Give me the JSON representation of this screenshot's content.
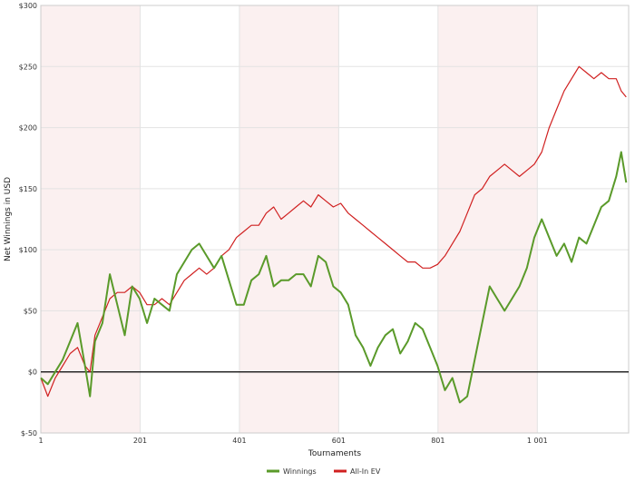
{
  "chart_data": {
    "type": "line",
    "title": "",
    "xlabel": "Tournaments",
    "ylabel": "Net Winnings in USD",
    "xlim": [
      1,
      1185
    ],
    "ylim": [
      -50,
      300
    ],
    "x_ticks": [
      {
        "value": 1,
        "label": "1"
      },
      {
        "value": 201,
        "label": "201"
      },
      {
        "value": 401,
        "label": "401"
      },
      {
        "value": 601,
        "label": "601"
      },
      {
        "value": 801,
        "label": "801"
      },
      {
        "value": 1001,
        "label": "1 001"
      }
    ],
    "y_ticks": [
      {
        "value": -50,
        "label": "$-50"
      },
      {
        "value": 0,
        "label": "$0"
      },
      {
        "value": 50,
        "label": "$50"
      },
      {
        "value": 100,
        "label": "$100"
      },
      {
        "value": 150,
        "label": "$150"
      },
      {
        "value": 200,
        "label": "$200"
      },
      {
        "value": 250,
        "label": "$250"
      },
      {
        "value": 300,
        "label": "$300"
      }
    ],
    "shaded_bands": [
      [
        1,
        201
      ],
      [
        401,
        601
      ],
      [
        801,
        1001
      ]
    ],
    "grid": true,
    "legend_position": "bottom-center",
    "series": [
      {
        "name": "Winnings",
        "color": "#5a9a2a",
        "x": [
          1,
          15,
          30,
          45,
          60,
          75,
          90,
          100,
          110,
          125,
          140,
          155,
          170,
          185,
          200,
          215,
          230,
          245,
          260,
          275,
          290,
          305,
          320,
          335,
          350,
          365,
          380,
          395,
          410,
          425,
          440,
          455,
          470,
          485,
          500,
          515,
          530,
          545,
          560,
          575,
          590,
          605,
          620,
          635,
          650,
          665,
          680,
          695,
          710,
          725,
          740,
          755,
          770,
          785,
          800,
          815,
          830,
          845,
          860,
          875,
          890,
          905,
          920,
          935,
          950,
          965,
          980,
          995,
          1010,
          1025,
          1040,
          1055,
          1070,
          1085,
          1100,
          1115,
          1130,
          1145,
          1160,
          1170,
          1180
        ],
        "y": [
          -5,
          -10,
          0,
          10,
          25,
          40,
          5,
          -20,
          25,
          40,
          80,
          55,
          30,
          70,
          60,
          40,
          60,
          55,
          50,
          80,
          90,
          100,
          105,
          95,
          85,
          95,
          75,
          55,
          55,
          75,
          80,
          95,
          70,
          75,
          75,
          80,
          80,
          70,
          95,
          90,
          70,
          65,
          55,
          30,
          20,
          5,
          20,
          30,
          35,
          15,
          25,
          40,
          35,
          20,
          5,
          -15,
          -5,
          -25,
          -20,
          10,
          40,
          70,
          60,
          50,
          60,
          70,
          85,
          110,
          125,
          110,
          95,
          105,
          90,
          110,
          105,
          120,
          135,
          140,
          160,
          180,
          155
        ]
      },
      {
        "name": "All-In EV",
        "color": "#d02020",
        "x": [
          1,
          15,
          30,
          45,
          60,
          75,
          90,
          100,
          110,
          125,
          140,
          155,
          170,
          185,
          200,
          215,
          230,
          245,
          260,
          275,
          290,
          305,
          320,
          335,
          350,
          365,
          380,
          395,
          410,
          425,
          440,
          455,
          470,
          485,
          500,
          515,
          530,
          545,
          560,
          575,
          590,
          605,
          620,
          635,
          650,
          665,
          680,
          695,
          710,
          725,
          740,
          755,
          770,
          785,
          800,
          815,
          830,
          845,
          860,
          875,
          890,
          905,
          920,
          935,
          950,
          965,
          980,
          995,
          1010,
          1025,
          1040,
          1055,
          1070,
          1085,
          1100,
          1115,
          1130,
          1145,
          1160,
          1170,
          1180
        ],
        "y": [
          -5,
          -20,
          -5,
          5,
          15,
          20,
          5,
          0,
          30,
          45,
          60,
          65,
          65,
          70,
          65,
          55,
          55,
          60,
          55,
          65,
          75,
          80,
          85,
          80,
          85,
          95,
          100,
          110,
          115,
          120,
          120,
          130,
          135,
          125,
          130,
          135,
          140,
          135,
          145,
          140,
          135,
          138,
          130,
          125,
          120,
          115,
          110,
          105,
          100,
          95,
          90,
          90,
          85,
          85,
          88,
          95,
          105,
          115,
          130,
          145,
          150,
          160,
          165,
          170,
          165,
          160,
          165,
          170,
          180,
          200,
          215,
          230,
          240,
          250,
          245,
          240,
          245,
          240,
          240,
          230,
          225
        ]
      }
    ]
  }
}
